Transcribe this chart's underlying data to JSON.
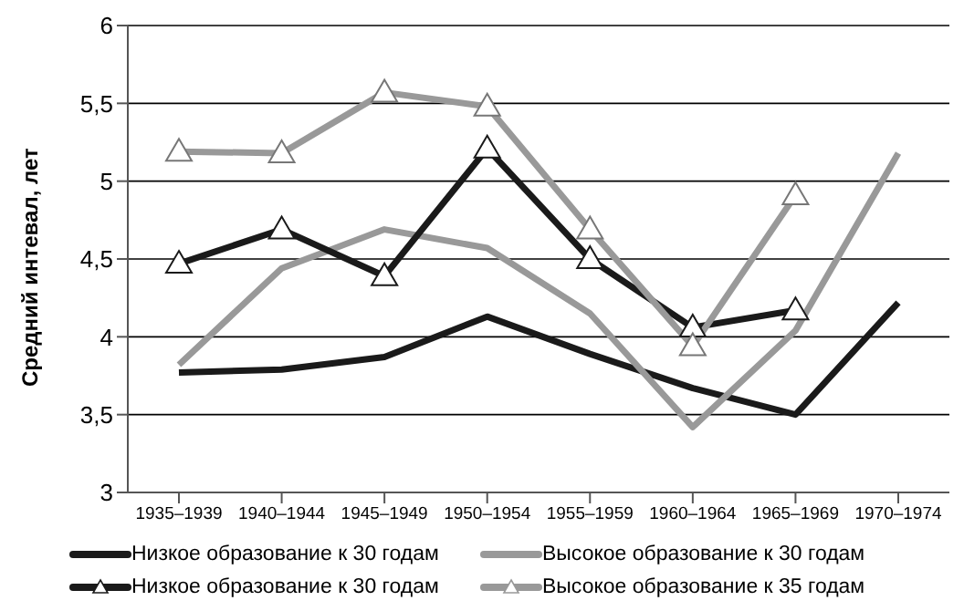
{
  "chart_data": {
    "type": "line",
    "ylabel": "Средний интевал, лет",
    "categories": [
      "1935–1939",
      "1940–1944",
      "1945–1949",
      "1950–1954",
      "1955–1959",
      "1960–1964",
      "1965–1969",
      "1970–1974"
    ],
    "series": [
      {
        "name": "Низкое образование к 30 годам",
        "color": "#1a1a1a",
        "marker": "none",
        "values": [
          3.77,
          3.79,
          3.87,
          4.13,
          3.89,
          3.67,
          3.5,
          4.22
        ]
      },
      {
        "name": "Высокое образование к 30 годам",
        "color": "#999999",
        "marker": "none",
        "values": [
          3.82,
          4.44,
          4.69,
          4.57,
          4.15,
          3.42,
          4.04,
          5.18
        ]
      },
      {
        "name": "Низкое образование к 30 годам",
        "color": "#1a1a1a",
        "marker": "triangle",
        "values": [
          4.47,
          4.69,
          4.39,
          5.21,
          4.5,
          4.06,
          4.17,
          null
        ]
      },
      {
        "name": "Высокое образование к 35 годам",
        "color": "#999999",
        "marker": "triangle",
        "values": [
          5.19,
          5.18,
          5.57,
          5.48,
          4.69,
          3.94,
          4.91,
          null
        ]
      }
    ],
    "ylim": [
      3,
      6
    ],
    "yticks": [
      3,
      {
        "value": 3.5,
        "label": "3,5"
      },
      4,
      {
        "value": 4.5,
        "label": "4,5"
      },
      5,
      {
        "value": 5.5,
        "label": "5,5"
      },
      6
    ],
    "grid": "y",
    "legend": "bottom"
  }
}
